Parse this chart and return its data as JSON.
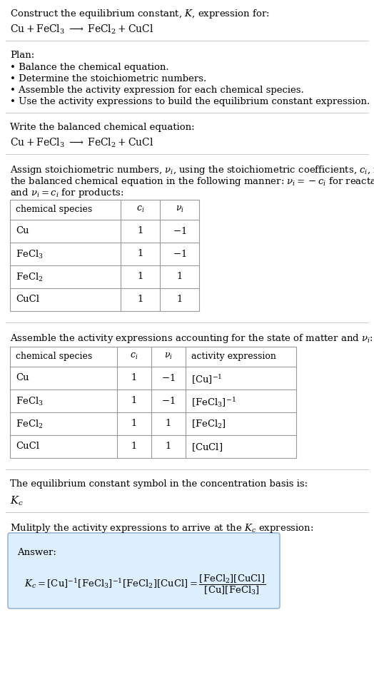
{
  "title_line1": "Construct the equilibrium constant, $K$, expression for:",
  "title_line2": "$\\mathrm{Cu + FeCl_3 \\;\\longrightarrow\\; FeCl_2 + CuCl}$",
  "plan_header": "Plan:",
  "plan_bullets": [
    "• Balance the chemical equation.",
    "• Determine the stoichiometric numbers.",
    "• Assemble the activity expression for each chemical species.",
    "• Use the activity expressions to build the equilibrium constant expression."
  ],
  "section2_header": "Write the balanced chemical equation:",
  "section2_eq": "$\\mathrm{Cu + FeCl_3 \\;\\longrightarrow\\; FeCl_2 + CuCl}$",
  "section3_text1": "Assign stoichiometric numbers, $\\nu_i$, using the stoichiometric coefficients, $c_i$, from",
  "section3_text2": "the balanced chemical equation in the following manner: $\\nu_i = -c_i$ for reactants",
  "section3_text3": "and $\\nu_i = c_i$ for products:",
  "table1_cols": [
    "chemical species",
    "$c_i$",
    "$\\nu_i$"
  ],
  "table1_rows": [
    [
      "Cu",
      "1",
      "$-1$"
    ],
    [
      "$\\mathrm{FeCl_3}$",
      "1",
      "$-1$"
    ],
    [
      "$\\mathrm{FeCl_2}$",
      "1",
      "1"
    ],
    [
      "CuCl",
      "1",
      "1"
    ]
  ],
  "section4_header": "Assemble the activity expressions accounting for the state of matter and $\\nu_i$:",
  "table2_cols": [
    "chemical species",
    "$c_i$",
    "$\\nu_i$",
    "activity expression"
  ],
  "table2_rows": [
    [
      "Cu",
      "1",
      "$-1$",
      "$[\\mathrm{Cu}]^{-1}$"
    ],
    [
      "$\\mathrm{FeCl_3}$",
      "1",
      "$-1$",
      "$[\\mathrm{FeCl_3}]^{-1}$"
    ],
    [
      "$\\mathrm{FeCl_2}$",
      "1",
      "1",
      "$[\\mathrm{FeCl_2}]$"
    ],
    [
      "CuCl",
      "1",
      "1",
      "$[\\mathrm{CuCl}]$"
    ]
  ],
  "section5_header": "The equilibrium constant symbol in the concentration basis is:",
  "section5_symbol": "$K_c$",
  "section6_header": "Mulitply the activity expressions to arrive at the $K_c$ expression:",
  "answer_label": "Answer:",
  "bg_color": "#ffffff",
  "text_color": "#000000",
  "table_border_color": "#999999",
  "answer_box_facecolor": "#ddeeff",
  "answer_box_edgecolor": "#88aacc",
  "separator_color": "#cccccc",
  "font_size": 9.5,
  "fig_width": 5.24,
  "fig_height": 9.49
}
